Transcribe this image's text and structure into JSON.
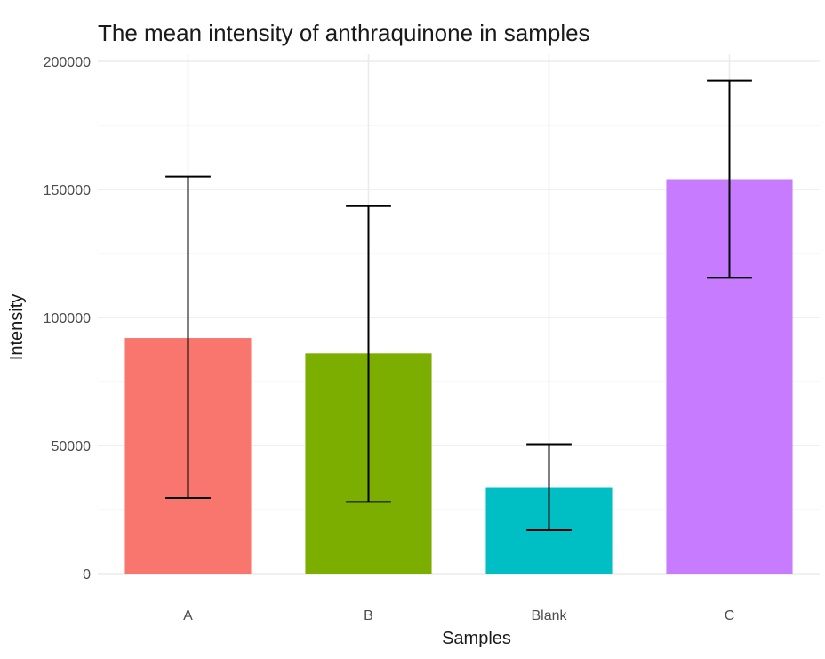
{
  "chart_data": {
    "type": "bar",
    "title": "The mean intensity of anthraquinone in samples",
    "xlabel": "Samples",
    "ylabel": "Intensity",
    "categories": [
      "A",
      "B",
      "Blank",
      "C"
    ],
    "values": [
      92000,
      86000,
      33500,
      154000
    ],
    "error_low": [
      29500,
      28000,
      17000,
      115500
    ],
    "error_high": [
      155000,
      143500,
      50500,
      192500
    ],
    "colors": [
      "#F8766D",
      "#7CAE00",
      "#00BFC4",
      "#C77CFF"
    ],
    "ylim": [
      0,
      200000
    ],
    "yticks": [
      0,
      50000,
      100000,
      150000,
      200000
    ],
    "ytick_labels": [
      "0",
      "50000",
      "100000",
      "150000",
      "200000"
    ],
    "grid": true,
    "legend": "none"
  }
}
